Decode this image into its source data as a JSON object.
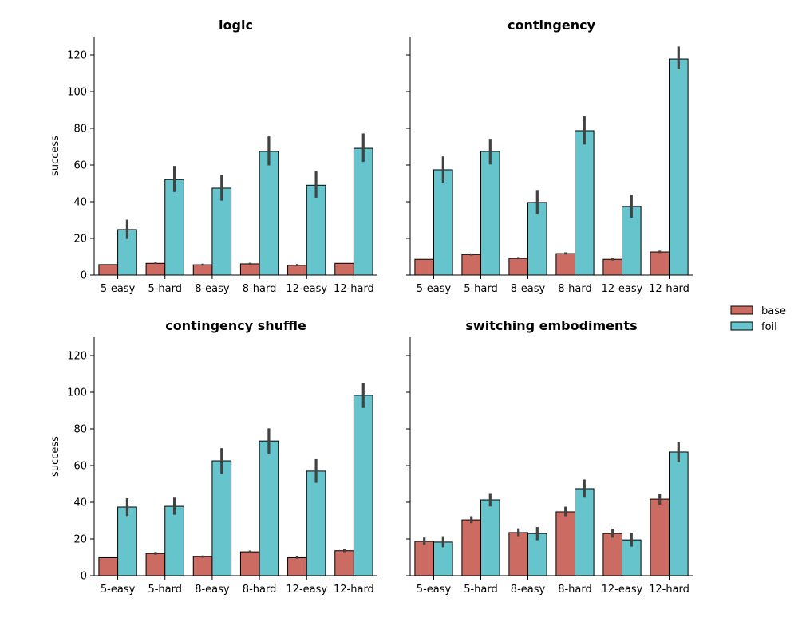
{
  "figure": {
    "legend": {
      "placement": "right",
      "entries": [
        {
          "label": "base",
          "color": "#cc6b62"
        },
        {
          "label": "foil",
          "color": "#66c5cc"
        }
      ]
    }
  },
  "chart_data": [
    {
      "type": "bar",
      "title": "logic",
      "xlabel": "",
      "ylabel": "success",
      "ylim": [
        0,
        130
      ],
      "yticks": [
        0,
        20,
        40,
        60,
        80,
        100,
        120
      ],
      "categories": [
        "5-easy",
        "5-hard",
        "8-easy",
        "8-hard",
        "12-easy",
        "12-hard"
      ],
      "series": [
        {
          "name": "base",
          "color": "#cc6b62",
          "values": [
            5.7,
            6.4,
            5.6,
            6.1,
            5.3,
            6.4
          ],
          "err_low": [
            5.7,
            6.0,
            5.1,
            5.6,
            4.8,
            6.4
          ],
          "err_high": [
            5.7,
            6.9,
            6.2,
            6.7,
            6.0,
            6.4
          ]
        },
        {
          "name": "foil",
          "color": "#66c5cc",
          "values": [
            24.8,
            52.1,
            47.4,
            67.4,
            49.0,
            69.1
          ],
          "err_low": [
            19.7,
            45.3,
            40.6,
            59.8,
            42.2,
            61.7
          ],
          "err_high": [
            30.2,
            59.5,
            54.6,
            75.6,
            56.5,
            77.2
          ]
        }
      ]
    },
    {
      "type": "bar",
      "title": "contingency",
      "xlabel": "",
      "ylabel": "",
      "ylim": [
        0,
        130
      ],
      "yticks": [
        0,
        20,
        40,
        60,
        80,
        100,
        120
      ],
      "categories": [
        "5-easy",
        "5-hard",
        "8-easy",
        "8-hard",
        "12-easy",
        "12-hard"
      ],
      "series": [
        {
          "name": "base",
          "color": "#cc6b62",
          "values": [
            8.6,
            11.2,
            9.1,
            11.7,
            8.6,
            12.6
          ],
          "err_low": [
            8.6,
            10.6,
            8.6,
            11.2,
            8.0,
            12.0
          ],
          "err_high": [
            8.6,
            11.8,
            9.8,
            12.4,
            9.5,
            13.3
          ]
        },
        {
          "name": "foil",
          "color": "#66c5cc",
          "values": [
            57.4,
            67.4,
            39.6,
            78.7,
            37.4,
            117.8
          ],
          "err_low": [
            50.4,
            60.3,
            33.0,
            71.2,
            31.3,
            112.2
          ],
          "err_high": [
            64.7,
            74.3,
            46.4,
            86.5,
            43.8,
            124.6
          ]
        }
      ]
    },
    {
      "type": "bar",
      "title": "contingency shuffle",
      "xlabel": "",
      "ylabel": "success",
      "ylim": [
        0,
        130
      ],
      "yticks": [
        0,
        20,
        40,
        60,
        80,
        100,
        120
      ],
      "categories": [
        "5-easy",
        "5-hard",
        "8-easy",
        "8-hard",
        "12-easy",
        "12-hard"
      ],
      "series": [
        {
          "name": "base",
          "color": "#cc6b62",
          "values": [
            9.8,
            12.1,
            10.4,
            13.0,
            9.8,
            13.6
          ],
          "err_low": [
            9.8,
            11.4,
            9.8,
            12.4,
            9.2,
            12.8
          ],
          "err_high": [
            9.8,
            12.9,
            11.0,
            13.7,
            10.6,
            14.5
          ]
        },
        {
          "name": "foil",
          "color": "#66c5cc",
          "values": [
            37.4,
            37.8,
            62.6,
            73.4,
            57.0,
            98.3
          ],
          "err_low": [
            32.5,
            33.2,
            55.4,
            66.4,
            50.6,
            91.4
          ],
          "err_high": [
            42.2,
            42.5,
            69.5,
            80.3,
            63.5,
            105.2
          ]
        }
      ]
    },
    {
      "type": "bar",
      "title": "switching embodiments",
      "xlabel": "",
      "ylabel": "",
      "ylim": [
        0,
        130
      ],
      "yticks": [
        0,
        20,
        40,
        60,
        80,
        100,
        120
      ],
      "categories": [
        "5-easy",
        "5-hard",
        "8-easy",
        "8-hard",
        "12-easy",
        "12-hard"
      ],
      "series": [
        {
          "name": "base",
          "color": "#cc6b62",
          "values": [
            18.7,
            30.4,
            23.5,
            34.8,
            23.0,
            41.7
          ],
          "err_low": [
            16.8,
            28.6,
            21.5,
            32.4,
            20.7,
            38.7
          ],
          "err_high": [
            20.8,
            32.4,
            25.8,
            37.6,
            25.5,
            44.6
          ]
        },
        {
          "name": "foil",
          "color": "#66c5cc",
          "values": [
            18.3,
            41.3,
            23.0,
            47.4,
            19.5,
            67.4
          ],
          "err_low": [
            15.5,
            37.7,
            19.3,
            42.5,
            15.8,
            61.9
          ],
          "err_high": [
            21.5,
            45.0,
            26.5,
            52.4,
            23.5,
            72.8
          ]
        }
      ]
    }
  ]
}
